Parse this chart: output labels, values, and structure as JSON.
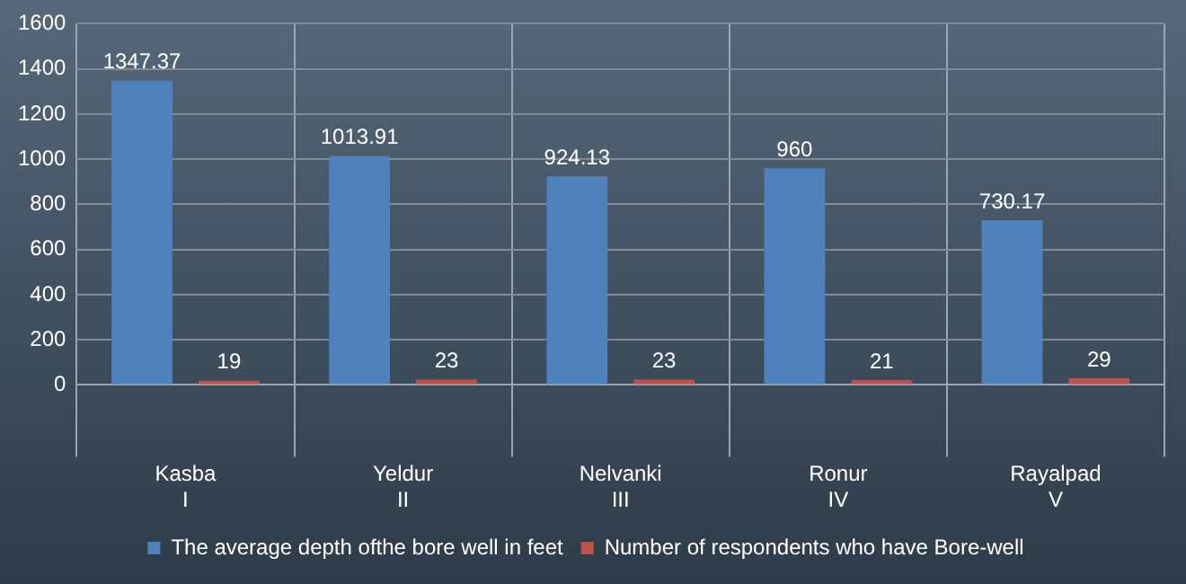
{
  "chart_data": {
    "type": "bar",
    "categories": [
      "Kasba\nI",
      "Yeldur\nII",
      "Nelvanki\nIII",
      "Ronur\nIV",
      "Rayalpad\nV"
    ],
    "series": [
      {
        "name": "The average depth ofthe bore well in feet",
        "color": "#4f81bd",
        "values": [
          1347.37,
          1013.91,
          924.13,
          960,
          730.17
        ]
      },
      {
        "name": "Number of respondents who have Bore-well",
        "color": "#c0504d",
        "values": [
          19,
          23,
          23,
          21,
          29
        ]
      }
    ],
    "ylim": [
      0,
      1600
    ],
    "yticks": [
      0,
      200,
      400,
      600,
      800,
      1000,
      1200,
      1400,
      1600
    ],
    "grid": "y",
    "legend": "bottom",
    "data_labels": true
  }
}
